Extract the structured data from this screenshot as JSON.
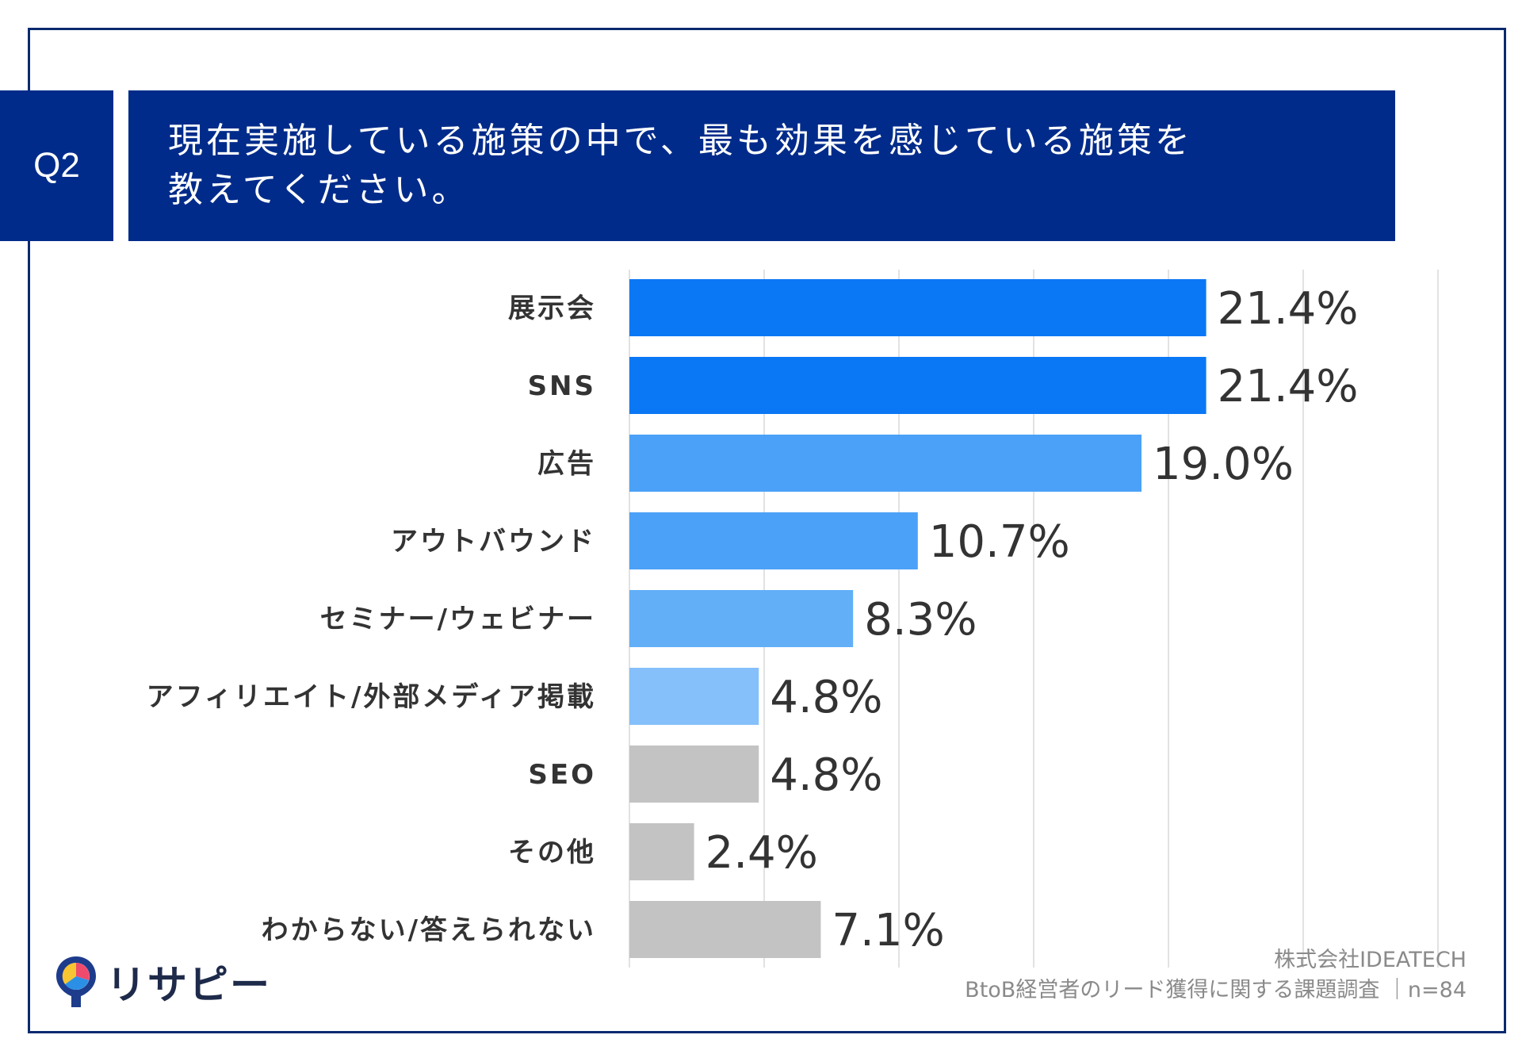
{
  "question": {
    "number": "Q2",
    "title_line1": "現在実施している施策の中で、最も効果を感じている施策を",
    "title_line2": "教えてください。"
  },
  "chart_data": {
    "type": "bar",
    "orientation": "horizontal",
    "categories": [
      "展示会",
      "SNS",
      "広告",
      "アウトバウンド",
      "セミナー/ウェビナー",
      "アフィリエイト/外部メディア掲載",
      "SEO",
      "その他",
      "わからない/答えられない"
    ],
    "values": [
      21.4,
      21.4,
      19.0,
      10.7,
      8.3,
      4.8,
      4.8,
      2.4,
      7.1
    ],
    "value_labels": [
      "21.4%",
      "21.4%",
      "19.0%",
      "10.7%",
      "8.3%",
      "4.8%",
      "4.8%",
      "2.4%",
      "7.1%"
    ],
    "bar_colors": [
      "#0a78f5",
      "#0a78f5",
      "#4ba1f7",
      "#4ba1f7",
      "#62aff8",
      "#85c0fa",
      "#c3c3c3",
      "#c3c3c3",
      "#c3c3c3"
    ],
    "xlim": [
      0,
      30
    ],
    "grid": true
  },
  "footer": {
    "company": "株式会社IDEATECH",
    "survey": "BtoB経営者のリード獲得に関する課題調査 ｜n=84"
  },
  "logo": {
    "text": "リサピー"
  },
  "colors": {
    "header_bg": "#002b8a",
    "frame": "#0a2a6e",
    "grid": "#d9d9d9"
  }
}
